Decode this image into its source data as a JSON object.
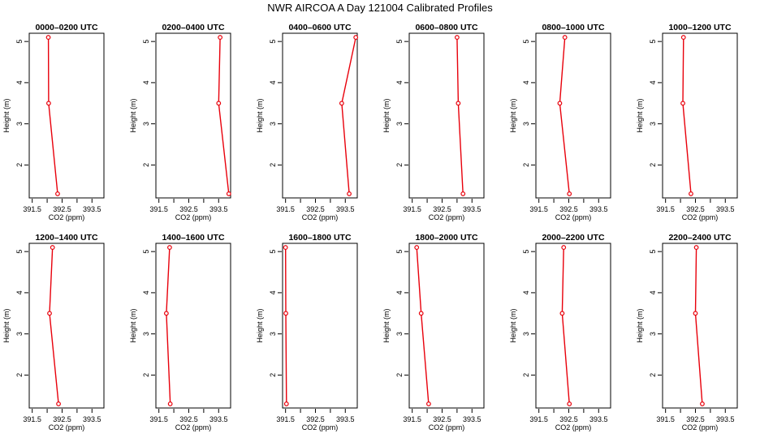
{
  "title": "NWR AIRCOA A  Day 121004  Calibrated Profiles",
  "colors": {
    "line": "#e8000b",
    "axis": "#000000"
  },
  "chart_data": [
    {
      "type": "line",
      "title": "0000–0200 UTC",
      "xlabel": "CO2 (ppm)",
      "ylabel": "Height (m)",
      "xlim": [
        391.4,
        393.9
      ],
      "ylim": [
        1.2,
        5.2
      ],
      "xticks": [
        391.5,
        392,
        392.5,
        393,
        393.5
      ],
      "xticklabels": [
        "391.5",
        "",
        "392.5",
        "",
        "393.5"
      ],
      "yticks": [
        2,
        3,
        4,
        5
      ],
      "yticklabels": [
        "2",
        "3",
        "4",
        "5"
      ],
      "series": [
        {
          "name": "CO2",
          "x": [
            392.35,
            392.05,
            392.04
          ],
          "y": [
            1.3,
            3.5,
            5.1
          ]
        }
      ]
    },
    {
      "type": "line",
      "title": "0200–0400 UTC",
      "xlabel": "CO2 (ppm)",
      "ylabel": "Height (m)",
      "xlim": [
        391.4,
        393.9
      ],
      "ylim": [
        1.2,
        5.2
      ],
      "xticks": [
        391.5,
        392,
        392.5,
        393,
        393.5
      ],
      "xticklabels": [
        "391.5",
        "",
        "392.5",
        "",
        "393.5"
      ],
      "yticks": [
        2,
        3,
        4,
        5
      ],
      "yticklabels": [
        "2",
        "3",
        "4",
        "5"
      ],
      "series": [
        {
          "name": "CO2",
          "x": [
            393.84,
            393.5,
            393.55
          ],
          "y": [
            1.3,
            3.5,
            5.1
          ]
        }
      ]
    },
    {
      "type": "line",
      "title": "0400–0600 UTC",
      "xlabel": "CO2 (ppm)",
      "ylabel": "Height (m)",
      "xlim": [
        391.4,
        393.9
      ],
      "ylim": [
        1.2,
        5.2
      ],
      "xticks": [
        391.5,
        392,
        392.5,
        393,
        393.5
      ],
      "xticklabels": [
        "391.5",
        "",
        "392.5",
        "",
        "393.5"
      ],
      "yticks": [
        2,
        3,
        4,
        5
      ],
      "yticklabels": [
        "2",
        "3",
        "4",
        "5"
      ],
      "series": [
        {
          "name": "CO2",
          "x": [
            393.63,
            393.38,
            393.85
          ],
          "y": [
            1.3,
            3.5,
            5.1
          ]
        }
      ]
    },
    {
      "type": "line",
      "title": "0600–0800 UTC",
      "xlabel": "CO2 (ppm)",
      "ylabel": "Height (m)",
      "xlim": [
        391.4,
        393.9
      ],
      "ylim": [
        1.2,
        5.2
      ],
      "xticks": [
        391.5,
        392,
        392.5,
        393,
        393.5
      ],
      "xticklabels": [
        "391.5",
        "",
        "392.5",
        "",
        "393.5"
      ],
      "yticks": [
        2,
        3,
        4,
        5
      ],
      "yticklabels": [
        "2",
        "3",
        "4",
        "5"
      ],
      "series": [
        {
          "name": "CO2",
          "x": [
            393.2,
            393.04,
            393.0
          ],
          "y": [
            1.3,
            3.5,
            5.1
          ]
        }
      ]
    },
    {
      "type": "line",
      "title": "0800–1000 UTC",
      "xlabel": "CO2 (ppm)",
      "ylabel": "Height (m)",
      "xlim": [
        391.4,
        393.9
      ],
      "ylim": [
        1.2,
        5.2
      ],
      "xticks": [
        391.5,
        392,
        392.5,
        393,
        393.5
      ],
      "xticklabels": [
        "391.5",
        "",
        "392.5",
        "",
        "393.5"
      ],
      "yticks": [
        2,
        3,
        4,
        5
      ],
      "yticklabels": [
        "2",
        "3",
        "4",
        "5"
      ],
      "series": [
        {
          "name": "CO2",
          "x": [
            392.52,
            392.2,
            392.37
          ],
          "y": [
            1.3,
            3.5,
            5.1
          ]
        }
      ]
    },
    {
      "type": "line",
      "title": "1000–1200 UTC",
      "xlabel": "CO2 (ppm)",
      "ylabel": "Height (m)",
      "xlim": [
        391.4,
        393.9
      ],
      "ylim": [
        1.2,
        5.2
      ],
      "xticks": [
        391.5,
        392,
        392.5,
        393,
        393.5
      ],
      "xticklabels": [
        "391.5",
        "",
        "392.5",
        "",
        "393.5"
      ],
      "yticks": [
        2,
        3,
        4,
        5
      ],
      "yticklabels": [
        "2",
        "3",
        "4",
        "5"
      ],
      "series": [
        {
          "name": "CO2",
          "x": [
            392.35,
            392.08,
            392.1
          ],
          "y": [
            1.3,
            3.5,
            5.1
          ]
        }
      ]
    },
    {
      "type": "line",
      "title": "1200–1400 UTC",
      "xlabel": "CO2 (ppm)",
      "ylabel": "Height (m)",
      "xlim": [
        391.4,
        393.9
      ],
      "ylim": [
        1.2,
        5.2
      ],
      "xticks": [
        391.5,
        392,
        392.5,
        393,
        393.5
      ],
      "xticklabels": [
        "391.5",
        "",
        "392.5",
        "",
        "393.5"
      ],
      "yticks": [
        2,
        3,
        4,
        5
      ],
      "yticklabels": [
        "2",
        "3",
        "4",
        "5"
      ],
      "series": [
        {
          "name": "CO2",
          "x": [
            392.38,
            392.08,
            392.18
          ],
          "y": [
            1.3,
            3.5,
            5.1
          ]
        }
      ]
    },
    {
      "type": "line",
      "title": "1400–1600 UTC",
      "xlabel": "CO2 (ppm)",
      "ylabel": "Height (m)",
      "xlim": [
        391.4,
        393.9
      ],
      "ylim": [
        1.2,
        5.2
      ],
      "xticks": [
        391.5,
        392,
        392.5,
        393,
        393.5
      ],
      "xticklabels": [
        "391.5",
        "",
        "392.5",
        "",
        "393.5"
      ],
      "yticks": [
        2,
        3,
        4,
        5
      ],
      "yticklabels": [
        "2",
        "3",
        "4",
        "5"
      ],
      "series": [
        {
          "name": "CO2",
          "x": [
            391.88,
            391.75,
            391.86
          ],
          "y": [
            1.3,
            3.5,
            5.1
          ]
        }
      ]
    },
    {
      "type": "line",
      "title": "1600–1800 UTC",
      "xlabel": "CO2 (ppm)",
      "ylabel": "Height (m)",
      "xlim": [
        391.4,
        393.9
      ],
      "ylim": [
        1.2,
        5.2
      ],
      "xticks": [
        391.5,
        392,
        392.5,
        393,
        393.5
      ],
      "xticklabels": [
        "391.5",
        "",
        "392.5",
        "",
        "393.5"
      ],
      "yticks": [
        2,
        3,
        4,
        5
      ],
      "yticklabels": [
        "2",
        "3",
        "4",
        "5"
      ],
      "series": [
        {
          "name": "CO2",
          "x": [
            391.53,
            391.51,
            391.5
          ],
          "y": [
            1.3,
            3.5,
            5.1
          ]
        }
      ]
    },
    {
      "type": "line",
      "title": "1800–2000 UTC",
      "xlabel": "CO2 (ppm)",
      "ylabel": "Height (m)",
      "xlim": [
        391.4,
        393.9
      ],
      "ylim": [
        1.2,
        5.2
      ],
      "xticks": [
        391.5,
        392,
        392.5,
        393,
        393.5
      ],
      "xticklabels": [
        "391.5",
        "",
        "392.5",
        "",
        "393.5"
      ],
      "yticks": [
        2,
        3,
        4,
        5
      ],
      "yticklabels": [
        "2",
        "3",
        "4",
        "5"
      ],
      "series": [
        {
          "name": "CO2",
          "x": [
            392.05,
            391.8,
            391.65
          ],
          "y": [
            1.3,
            3.5,
            5.1
          ]
        }
      ]
    },
    {
      "type": "line",
      "title": "2000–2200 UTC",
      "xlabel": "CO2 (ppm)",
      "ylabel": "Height (m)",
      "xlim": [
        391.4,
        393.9
      ],
      "ylim": [
        1.2,
        5.2
      ],
      "xticks": [
        391.5,
        392,
        392.5,
        393,
        393.5
      ],
      "xticklabels": [
        "391.5",
        "",
        "392.5",
        "",
        "393.5"
      ],
      "yticks": [
        2,
        3,
        4,
        5
      ],
      "yticklabels": [
        "2",
        "3",
        "4",
        "5"
      ],
      "series": [
        {
          "name": "CO2",
          "x": [
            392.52,
            392.28,
            392.33
          ],
          "y": [
            1.3,
            3.5,
            5.1
          ]
        }
      ]
    },
    {
      "type": "line",
      "title": "2200–2400 UTC",
      "xlabel": "CO2 (ppm)",
      "ylabel": "Height (m)",
      "xlim": [
        391.4,
        393.9
      ],
      "ylim": [
        1.2,
        5.2
      ],
      "xticks": [
        391.5,
        392,
        392.5,
        393,
        393.5
      ],
      "xticklabels": [
        "391.5",
        "",
        "392.5",
        "",
        "393.5"
      ],
      "yticks": [
        2,
        3,
        4,
        5
      ],
      "yticklabels": [
        "2",
        "3",
        "4",
        "5"
      ],
      "series": [
        {
          "name": "CO2",
          "x": [
            392.73,
            392.5,
            392.53
          ],
          "y": [
            1.3,
            3.5,
            5.1
          ]
        }
      ]
    }
  ]
}
